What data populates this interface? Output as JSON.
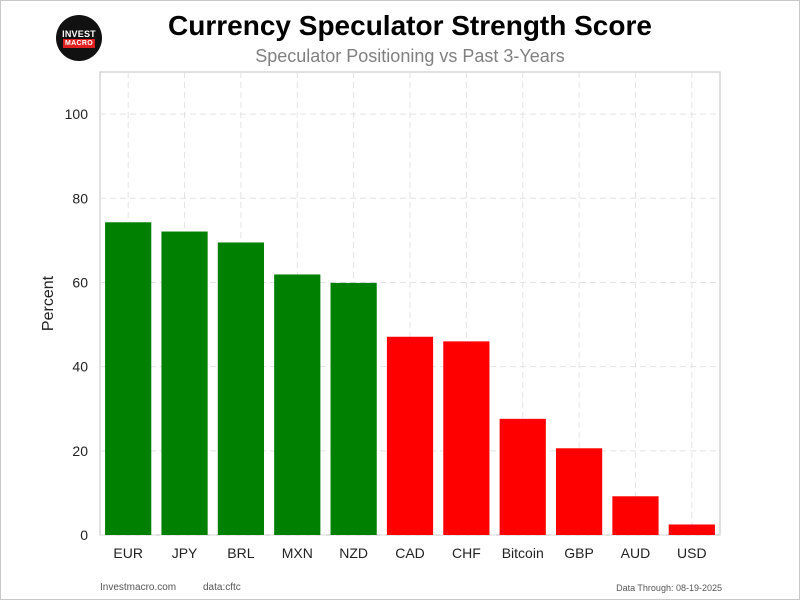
{
  "logo": {
    "top_text": "INVEST",
    "bottom_text": "MACRO"
  },
  "chart_data": {
    "type": "bar",
    "title": "Currency Speculator Strength Score",
    "subtitle": "Speculator Positioning vs Past 3-Years",
    "xlabel": "",
    "ylabel": "Percent",
    "categories": [
      "EUR",
      "JPY",
      "BRL",
      "MXN",
      "NZD",
      "CAD",
      "CHF",
      "Bitcoin",
      "GBP",
      "AUD",
      "USD"
    ],
    "values": [
      74.3,
      72.1,
      69.5,
      61.9,
      59.9,
      47.1,
      46.0,
      27.6,
      20.6,
      9.2,
      2.5
    ],
    "bar_colors": [
      "#008000",
      "#008000",
      "#008000",
      "#008000",
      "#008000",
      "#ff0000",
      "#ff0000",
      "#ff0000",
      "#ff0000",
      "#ff0000",
      "#ff0000"
    ],
    "ylim": [
      0,
      110
    ],
    "yticks": [
      0,
      20,
      40,
      60,
      80,
      100
    ],
    "grid": true,
    "grid_style": "dashed"
  },
  "footer": {
    "site": "Investmacro.com",
    "source": "data:cftc",
    "date_note": "Data Through: 08-19-2025"
  }
}
